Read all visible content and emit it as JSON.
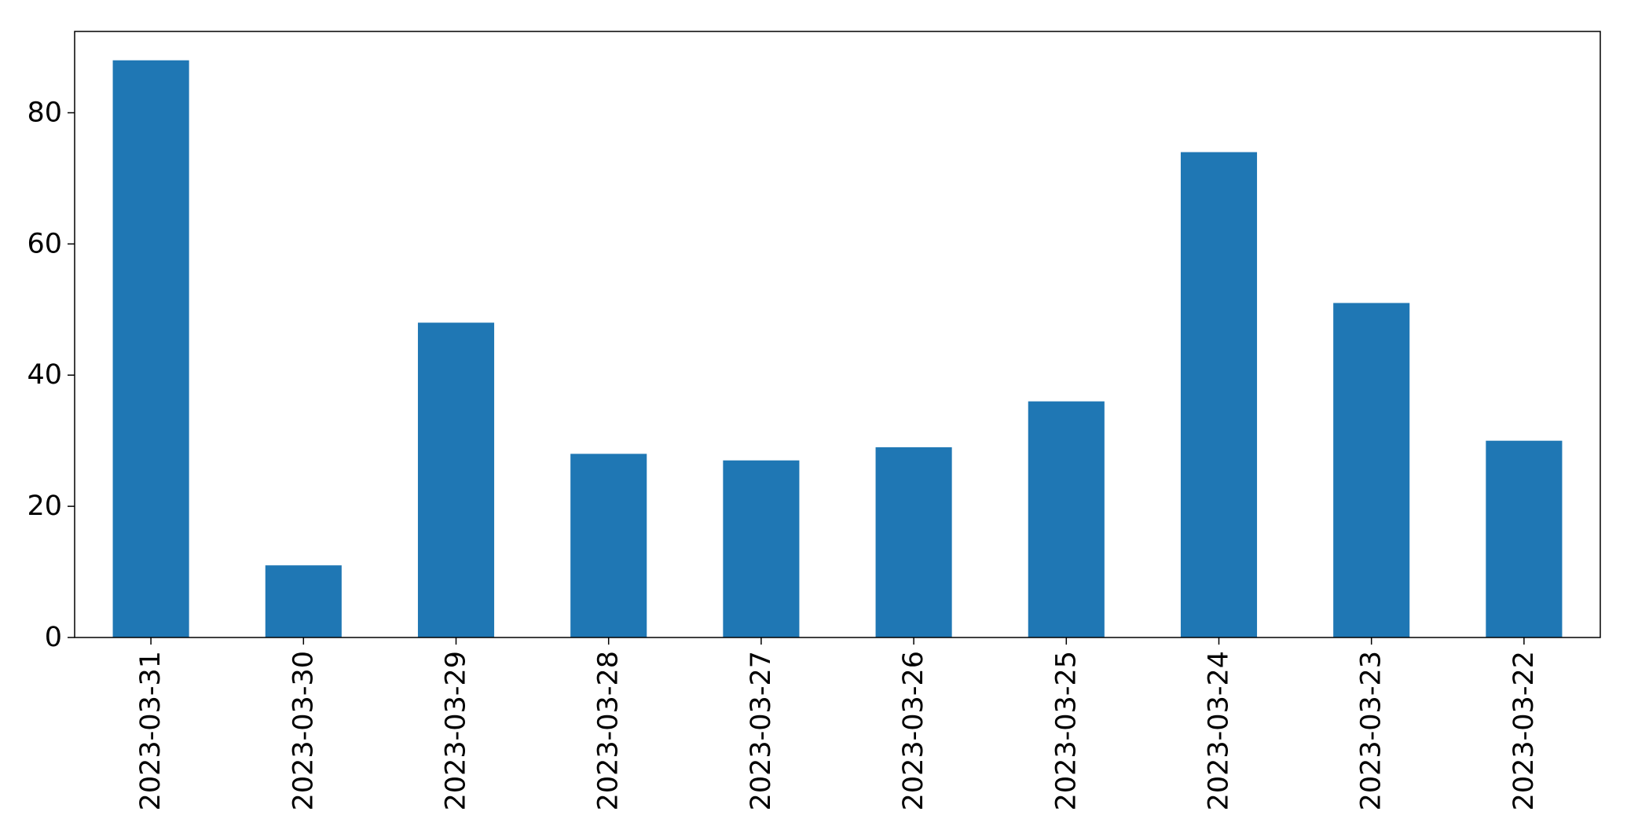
{
  "chart_data": {
    "type": "bar",
    "categories": [
      "2023-03-31",
      "2023-03-30",
      "2023-03-29",
      "2023-03-28",
      "2023-03-27",
      "2023-03-26",
      "2023-03-25",
      "2023-03-24",
      "2023-03-23",
      "2023-03-22"
    ],
    "values": [
      88,
      11,
      48,
      28,
      27,
      29,
      36,
      74,
      51,
      30
    ],
    "title": "",
    "xlabel": "",
    "ylabel": "",
    "ylim": [
      0,
      92.4
    ],
    "yticks": [
      0,
      20,
      40,
      60,
      80
    ],
    "grid": false,
    "legend": "none",
    "bar_color": "#1f77b4",
    "axis_color": "#000000",
    "x_tick_rotation": "vertical"
  }
}
